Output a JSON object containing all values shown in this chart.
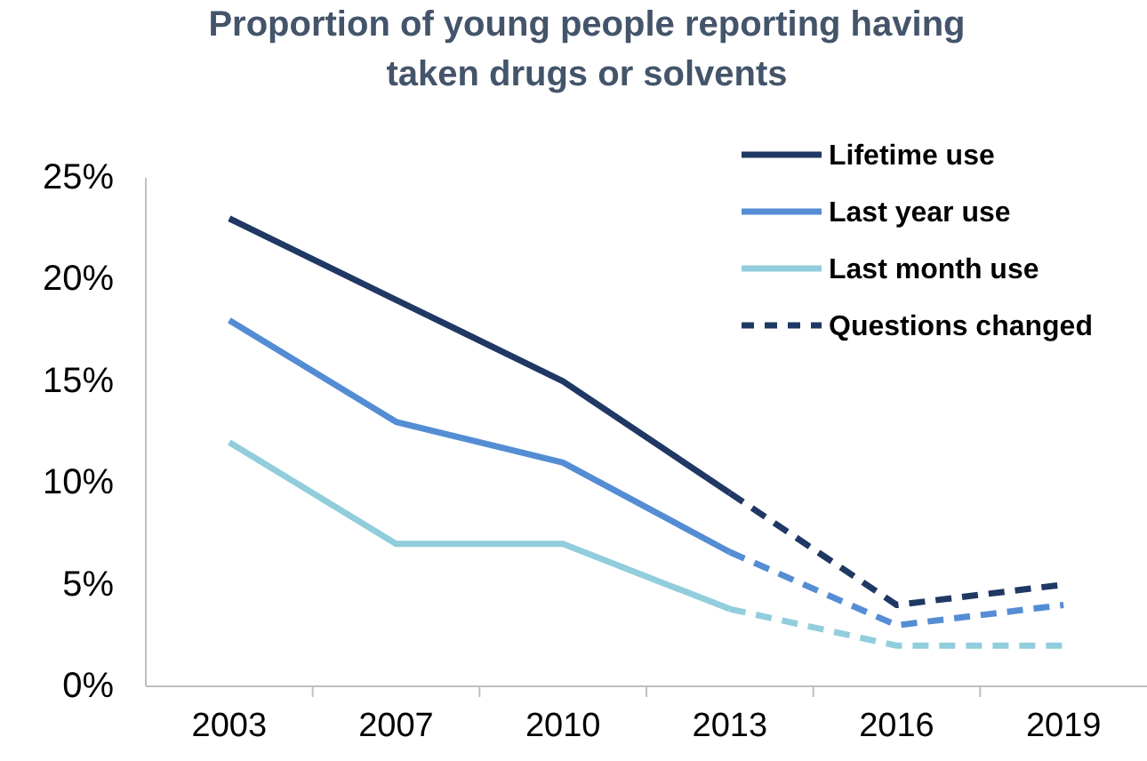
{
  "chart_data": {
    "type": "line",
    "title": "Proportion of young people reporting having\ntaken drugs or solvents",
    "categories": [
      "2003",
      "2007",
      "2010",
      "2013",
      "2016",
      "2019"
    ],
    "ylim": [
      0,
      25
    ],
    "yticks": [
      {
        "value": 0,
        "label": "0%"
      },
      {
        "value": 5,
        "label": "5%"
      },
      {
        "value": 10,
        "label": "10%"
      },
      {
        "value": 15,
        "label": "15%"
      },
      {
        "value": 20,
        "label": "20%"
      },
      {
        "value": 25,
        "label": "25%"
      }
    ],
    "grid": false,
    "legend": "top right",
    "marker": "none",
    "series": [
      {
        "name": "Lifetime use",
        "color": "#1f3864",
        "line_style": "solid",
        "values": [
          23,
          19,
          15,
          9.5,
          null,
          null
        ]
      },
      {
        "name": "Last year use",
        "color": "#548dd4",
        "line_style": "solid",
        "values": [
          18,
          13,
          11,
          6.6,
          null,
          null
        ]
      },
      {
        "name": "Last month use",
        "color": "#92cddc",
        "line_style": "solid",
        "values": [
          12,
          7,
          7,
          3.8,
          null,
          null
        ]
      },
      {
        "name": "Questions changed",
        "color": "#1f3864",
        "line_style": "dashed",
        "values": [
          null,
          null,
          null,
          9.5,
          4,
          5
        ]
      },
      {
        "color": "#548dd4",
        "line_style": "dashed",
        "values": [
          null,
          null,
          null,
          6.6,
          3,
          4
        ]
      },
      {
        "color": "#92cddc",
        "line_style": "dashed",
        "values": [
          null,
          null,
          null,
          3.8,
          2,
          2
        ]
      }
    ]
  }
}
